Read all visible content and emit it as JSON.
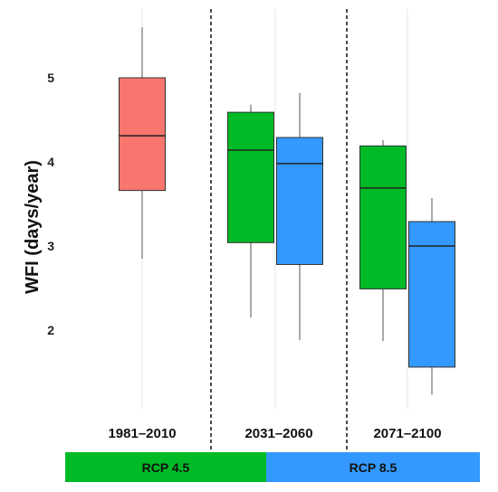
{
  "chart_data": {
    "type": "boxplot",
    "ylabel": "WFI (days/year)",
    "yticks": [
      2,
      3,
      4,
      5
    ],
    "ylim": [
      1.0,
      5.9
    ],
    "grid": "vertical",
    "groups": [
      {
        "label": "1981–2010",
        "boxes": [
          {
            "scenario": "RCP 4.5",
            "color": "#f8766d",
            "min": 2.85,
            "q1": 3.66,
            "median": 4.31,
            "q3": 5.0,
            "max": 5.6
          }
        ]
      },
      {
        "label": "2031–2060",
        "boxes": [
          {
            "scenario": "RCP 4.5",
            "color": "#00ba26",
            "min": 2.15,
            "q1": 3.04,
            "median": 4.14,
            "q3": 4.59,
            "max": 4.68
          },
          {
            "scenario": "RCP 8.5",
            "color": "#3399ff",
            "min": 1.88,
            "q1": 2.78,
            "median": 3.98,
            "q3": 4.29,
            "max": 4.82
          }
        ]
      },
      {
        "label": "2071–2100",
        "boxes": [
          {
            "scenario": "RCP 4.5",
            "color": "#00ba26",
            "min": 1.87,
            "q1": 2.49,
            "median": 3.69,
            "q3": 4.19,
            "max": 4.26
          },
          {
            "scenario": "RCP 8.5",
            "color": "#3399ff",
            "min": 1.23,
            "q1": 1.56,
            "median": 3.0,
            "q3": 3.29,
            "max": 3.57
          }
        ]
      }
    ],
    "legend": [
      {
        "name": "RCP 4.5",
        "color": "#00ba26"
      },
      {
        "name": "RCP 8.5",
        "color": "#3399ff"
      }
    ]
  }
}
